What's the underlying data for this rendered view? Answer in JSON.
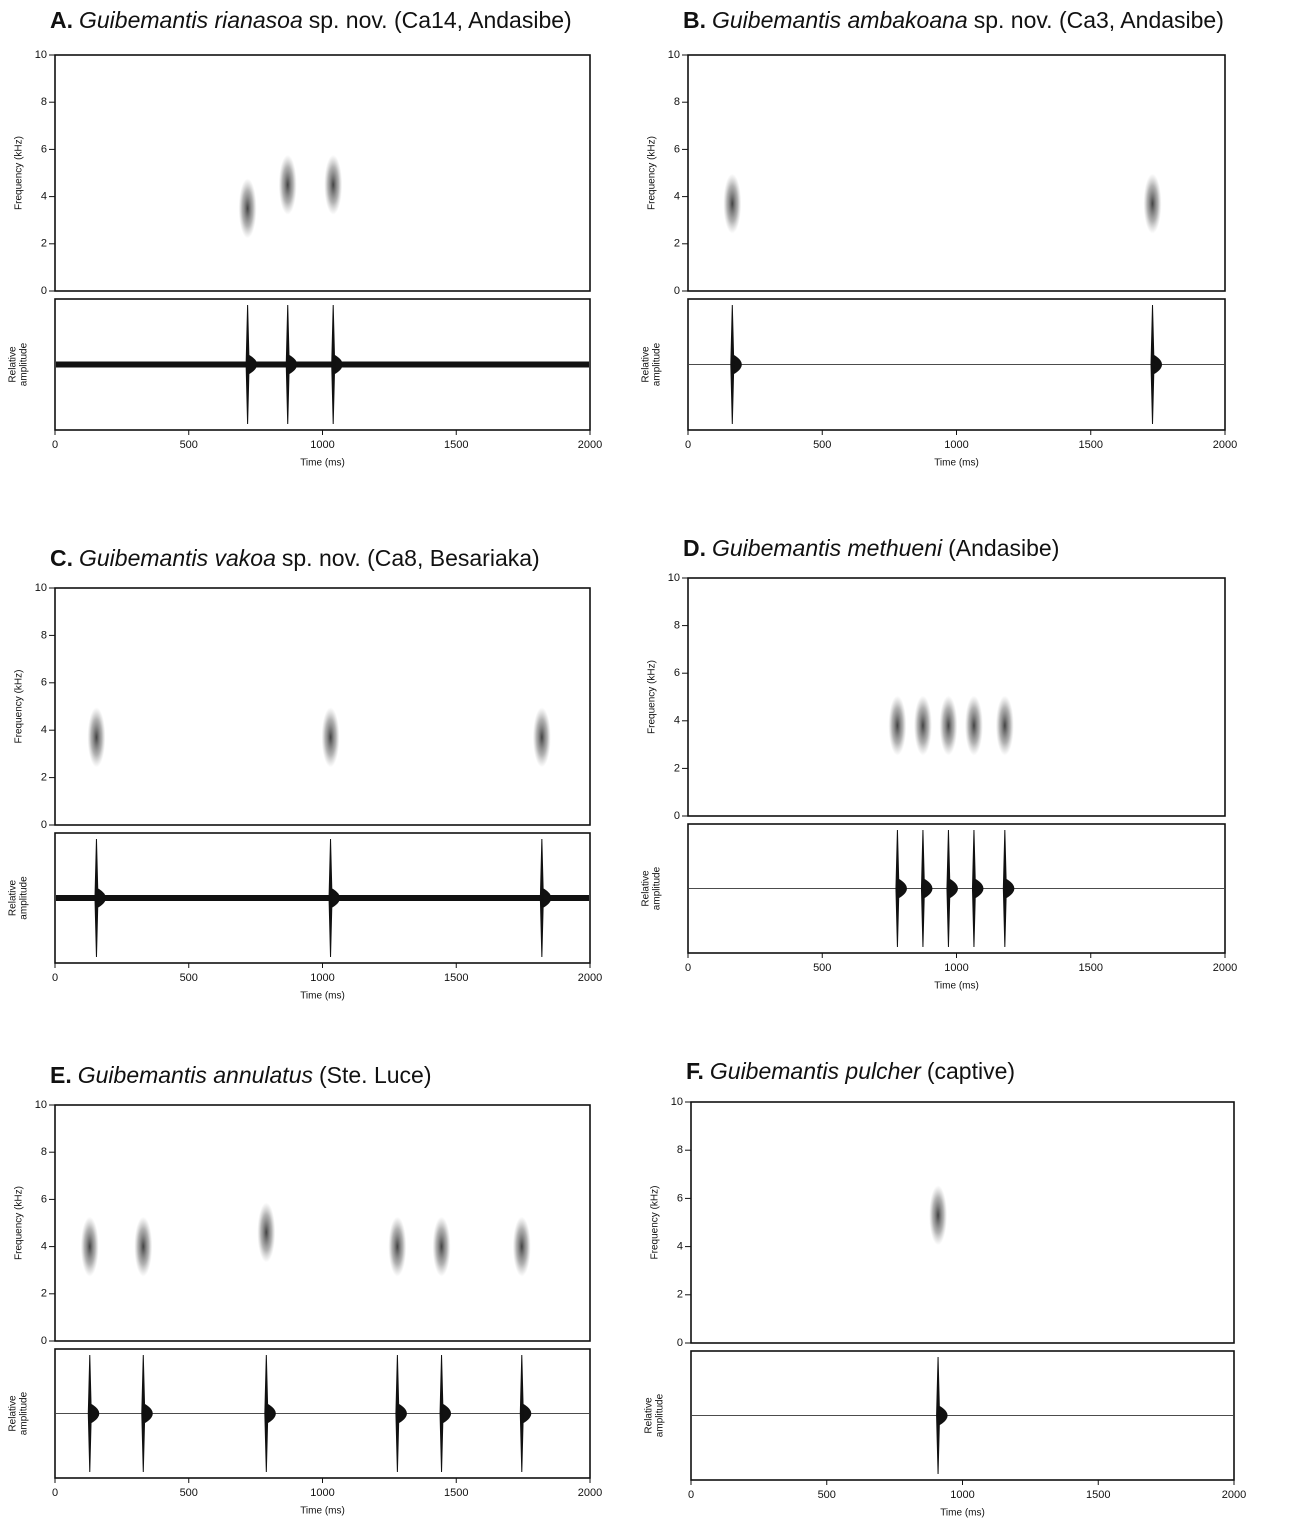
{
  "chart_data": [
    {
      "type": "spectrogram",
      "title_label": "A.",
      "title_species": "Guibemantis rianasoa",
      "title_rest": "sp. nov. (Ca14, Andasibe)",
      "x": [
        720,
        870,
        1040
      ],
      "values": [
        3.5,
        4.5,
        4.5
      ],
      "noisy": true,
      "xlim": [
        0,
        2000
      ],
      "xticks": [
        0,
        500,
        1000,
        1500,
        2000
      ],
      "ylim": [
        0,
        10
      ],
      "yticks": [
        0,
        2,
        4,
        6,
        8,
        10
      ],
      "xlabel": "Time (ms)",
      "ylabel": "Frequency (kHz)",
      "wave_label": [
        "Relative",
        "amplitude"
      ]
    },
    {
      "type": "spectrogram",
      "title_label": "B.",
      "title_species": "Guibemantis ambakoana",
      "title_rest": "sp. nov. (Ca3, Andasibe)",
      "x": [
        165,
        1730
      ],
      "values": [
        3.7,
        3.7
      ],
      "noisy": false,
      "xlim": [
        0,
        2000
      ],
      "xticks": [
        0,
        500,
        1000,
        1500,
        2000
      ],
      "ylim": [
        0,
        10
      ],
      "yticks": [
        0,
        2,
        4,
        6,
        8,
        10
      ],
      "xlabel": "Time (ms)",
      "ylabel": "Frequency (kHz)",
      "wave_label": [
        "Relative",
        "amplitude"
      ]
    },
    {
      "type": "spectrogram",
      "title_label": "C.",
      "title_species": "Guibemantis vakoa",
      "title_rest": "sp. nov. (Ca8, Besariaka)",
      "x": [
        155,
        1030,
        1820
      ],
      "values": [
        3.7,
        3.7,
        3.7
      ],
      "noisy": true,
      "xlim": [
        0,
        2000
      ],
      "xticks": [
        0,
        500,
        1000,
        1500,
        2000
      ],
      "ylim": [
        0,
        10
      ],
      "yticks": [
        0,
        2,
        4,
        6,
        8,
        10
      ],
      "xlabel": "Time (ms)",
      "ylabel": "Frequency (kHz)",
      "wave_label": [
        "Relative",
        "amplitude"
      ]
    },
    {
      "type": "spectrogram",
      "title_label": "D.",
      "title_species": "Guibemantis methueni",
      "title_rest": "(Andasibe)",
      "x": [
        780,
        875,
        970,
        1065,
        1180
      ],
      "values": [
        3.8,
        3.8,
        3.8,
        3.8,
        3.8
      ],
      "noisy": false,
      "xlim": [
        0,
        2000
      ],
      "xticks": [
        0,
        500,
        1000,
        1500,
        2000
      ],
      "ylim": [
        0,
        10
      ],
      "yticks": [
        0,
        2,
        4,
        6,
        8,
        10
      ],
      "xlabel": "Time (ms)",
      "ylabel": "Frequency (kHz)",
      "wave_label": [
        "Relative",
        "amplitude"
      ]
    },
    {
      "type": "spectrogram",
      "title_label": "E.",
      "title_species": "Guibemantis annulatus",
      "title_rest": "(Ste. Luce)",
      "x": [
        130,
        330,
        790,
        1280,
        1445,
        1745
      ],
      "values": [
        4.0,
        4.0,
        4.6,
        4.0,
        4.0,
        4.0
      ],
      "noisy": false,
      "xlim": [
        0,
        2000
      ],
      "xticks": [
        0,
        500,
        1000,
        1500,
        2000
      ],
      "ylim": [
        0,
        10
      ],
      "yticks": [
        0,
        2,
        4,
        6,
        8,
        10
      ],
      "xlabel": "Time (ms)",
      "ylabel": "Frequency (kHz)",
      "wave_label": [
        "Relative",
        "amplitude"
      ]
    },
    {
      "type": "spectrogram",
      "title_label": "F.",
      "title_species": "Guibemantis pulcher",
      "title_rest": "(captive)",
      "x": [
        910
      ],
      "values": [
        5.3
      ],
      "noisy": false,
      "xlim": [
        0,
        2000
      ],
      "xticks": [
        0,
        500,
        1000,
        1500,
        2000
      ],
      "ylim": [
        0,
        10
      ],
      "yticks": [
        0,
        2,
        4,
        6,
        8,
        10
      ],
      "xlabel": "Time (ms)",
      "ylabel": "Frequency (kHz)",
      "wave_label": [
        "Relative",
        "amplitude"
      ]
    }
  ]
}
